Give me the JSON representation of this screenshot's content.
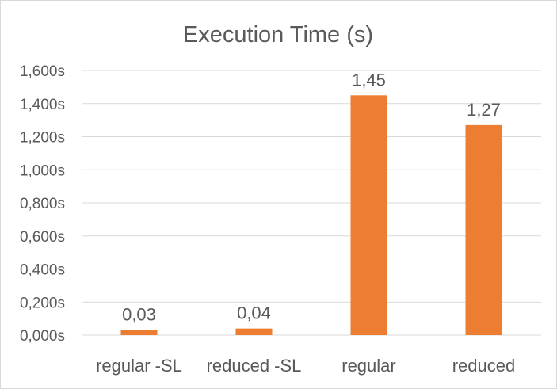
{
  "chart_data": {
    "type": "bar",
    "title": "Execution Time (s)",
    "categories": [
      "regular -SL",
      "reduced -SL",
      "regular",
      "reduced"
    ],
    "values": [
      0.03,
      0.04,
      1.45,
      1.27
    ],
    "data_labels": [
      "0,03",
      "0,04",
      "1,45",
      "1,27"
    ],
    "yticks": [
      0,
      0.2,
      0.4,
      0.6,
      0.8,
      1.0,
      1.2,
      1.4,
      1.6
    ],
    "ytick_labels": [
      "0,000s",
      "0,200s",
      "0,400s",
      "0,600s",
      "0,800s",
      "1,000s",
      "1,200s",
      "1,400s",
      "1,600s"
    ],
    "ylim": [
      0,
      1.6
    ],
    "grid": true,
    "legend": "none",
    "bar_color": "#ed7d31",
    "grid_color": "#d9d9d9"
  }
}
